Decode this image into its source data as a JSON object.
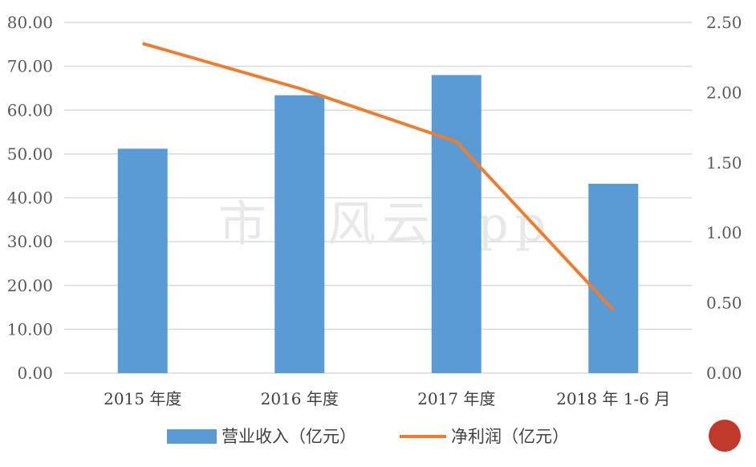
{
  "chart_data": {
    "type": "bar",
    "categories": [
      "2015 年度",
      "2016 年度",
      "2017 年度",
      "2018 年 1-6 月"
    ],
    "series": [
      {
        "name": "营业收入（亿元）",
        "type": "bar",
        "axis": "left",
        "color": "#5b9bd5",
        "values": [
          51.2,
          63.4,
          68.0,
          43.2
        ]
      },
      {
        "name": "净利润（亿元）",
        "type": "line",
        "axis": "right",
        "color": "#ed7d31",
        "values": [
          2.35,
          2.03,
          1.65,
          0.45
        ]
      }
    ],
    "ylim": [
      0,
      80
    ],
    "y_ticks": [
      "0.00",
      "10.00",
      "20.00",
      "30.00",
      "40.00",
      "50.00",
      "60.00",
      "70.00",
      "80.00"
    ],
    "y2lim": [
      0,
      2.5
    ],
    "y2_ticks": [
      "0.00",
      "0.50",
      "1.00",
      "1.50",
      "2.00",
      "2.50"
    ],
    "grid": true,
    "legend": "bottom",
    "watermark": "市值风云App"
  }
}
